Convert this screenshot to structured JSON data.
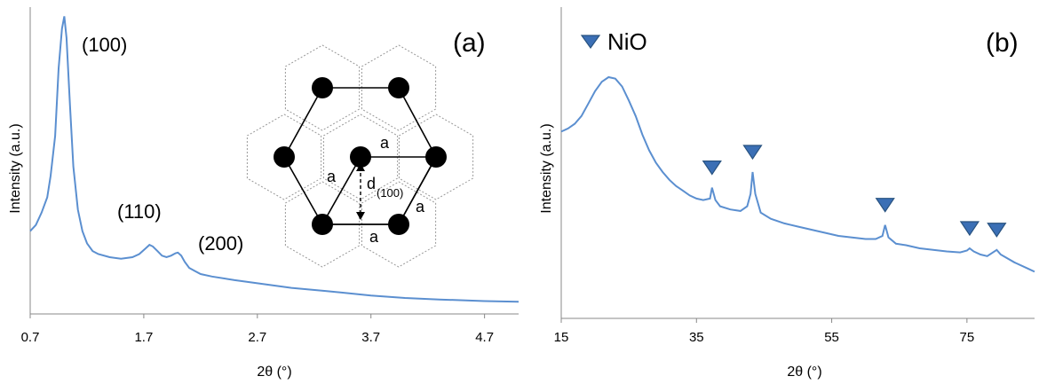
{
  "chart_data": [
    {
      "type": "line",
      "panel_label": "(a)",
      "xlabel": "2θ (°)",
      "ylabel": "Intensity (a.u.)",
      "xlim": [
        0.7,
        5.0
      ],
      "xticks": [
        "0.7",
        "1.7",
        "2.7",
        "3.7",
        "4.7"
      ],
      "color": "#5b8fd0",
      "grid": false,
      "annotations": [
        "(100)",
        "(110)",
        "(200)"
      ],
      "inset_labels": {
        "a": "a",
        "d": "d",
        "d_sub": "(100)"
      },
      "series": [
        {
          "x": [
            0.7,
            0.75,
            0.8,
            0.85,
            0.88,
            0.92,
            0.95,
            0.98,
            1.0,
            1.02,
            1.05,
            1.08,
            1.12,
            1.16,
            1.2,
            1.25,
            1.3,
            1.4,
            1.5,
            1.6,
            1.66,
            1.72,
            1.75,
            1.78,
            1.82,
            1.86,
            1.9,
            1.94,
            1.98,
            2.0,
            2.03,
            2.06,
            2.1,
            2.15,
            2.2,
            2.3,
            2.5,
            2.7,
            3.0,
            3.3,
            3.7,
            4.0,
            4.3,
            4.7,
            5.0
          ],
          "y": [
            0.27,
            0.29,
            0.33,
            0.38,
            0.45,
            0.58,
            0.8,
            0.93,
            0.97,
            0.9,
            0.68,
            0.48,
            0.34,
            0.27,
            0.23,
            0.205,
            0.195,
            0.185,
            0.18,
            0.185,
            0.195,
            0.215,
            0.225,
            0.22,
            0.205,
            0.19,
            0.185,
            0.19,
            0.198,
            0.2,
            0.19,
            0.17,
            0.15,
            0.14,
            0.13,
            0.122,
            0.11,
            0.1,
            0.085,
            0.075,
            0.06,
            0.052,
            0.047,
            0.042,
            0.04
          ]
        }
      ]
    },
    {
      "type": "line",
      "panel_label": "(b)",
      "xlabel": "2θ (°)",
      "ylabel": "Intensity (a.u.)",
      "xlim": [
        15,
        85
      ],
      "xticks": [
        "15",
        "35",
        "55",
        "75"
      ],
      "color": "#5b8fd0",
      "grid": false,
      "legend": {
        "marker": "down-triangle",
        "label": "NiO",
        "placement": "top-left"
      },
      "peak_markers_x": [
        37.3,
        43.3,
        62.9,
        75.4,
        79.4
      ],
      "series": [
        {
          "x": [
            15,
            16,
            17,
            18,
            19,
            20,
            21,
            22,
            23,
            24,
            25,
            26,
            27,
            28,
            29,
            30,
            31,
            32,
            33,
            34,
            35,
            36,
            37,
            37.3,
            37.8,
            38.5,
            40,
            41.5,
            42.5,
            43,
            43.3,
            43.7,
            44.5,
            46,
            48,
            50,
            52,
            54,
            56,
            58,
            60,
            61.5,
            62.5,
            62.9,
            63.4,
            64.5,
            66,
            68,
            70,
            72,
            74,
            75,
            75.4,
            76,
            77,
            78,
            79.4,
            80,
            82,
            84,
            85
          ],
          "y": [
            0.6,
            0.61,
            0.625,
            0.65,
            0.69,
            0.73,
            0.76,
            0.775,
            0.77,
            0.745,
            0.7,
            0.65,
            0.59,
            0.54,
            0.5,
            0.47,
            0.445,
            0.425,
            0.41,
            0.395,
            0.385,
            0.38,
            0.385,
            0.42,
            0.38,
            0.36,
            0.35,
            0.345,
            0.36,
            0.4,
            0.47,
            0.4,
            0.34,
            0.32,
            0.305,
            0.295,
            0.285,
            0.275,
            0.265,
            0.26,
            0.255,
            0.255,
            0.265,
            0.3,
            0.26,
            0.24,
            0.235,
            0.225,
            0.22,
            0.215,
            0.212,
            0.218,
            0.225,
            0.215,
            0.205,
            0.2,
            0.22,
            0.205,
            0.18,
            0.16,
            0.15
          ]
        }
      ]
    }
  ]
}
